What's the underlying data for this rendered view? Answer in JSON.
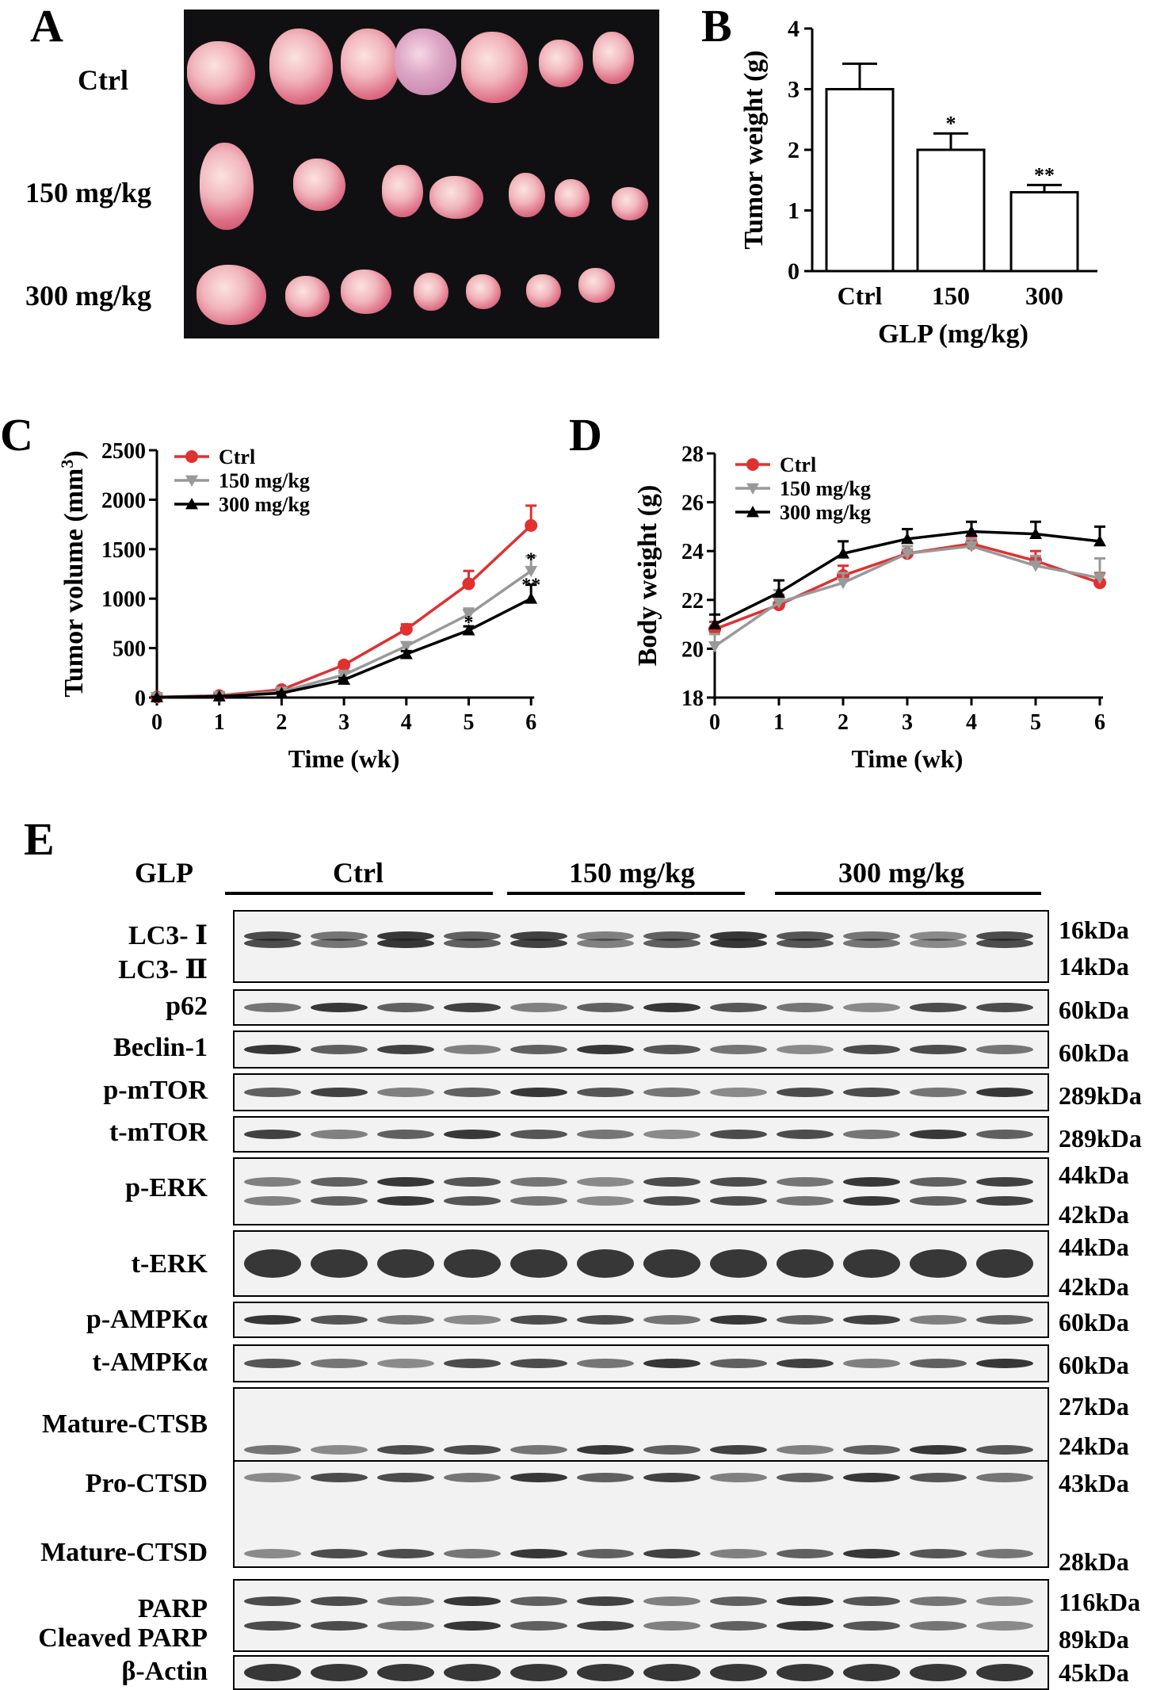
{
  "panels": {
    "a": "A",
    "b": "B",
    "c": "C",
    "d": "D",
    "e": "E"
  },
  "panel_a": {
    "row_labels": [
      "Ctrl",
      "150 mg/kg",
      "300 mg/kg"
    ]
  },
  "chart_data": [
    {
      "type": "bar",
      "panel": "B",
      "categories": [
        "Ctrl",
        "150",
        "300"
      ],
      "values": [
        3.0,
        2.0,
        1.3
      ],
      "errors": [
        0.42,
        0.27,
        0.12
      ],
      "significance": [
        "",
        "*",
        "**"
      ],
      "ylabel": "Tumor weight (g)",
      "xlabel": "GLP (mg/kg)",
      "ylim": [
        0,
        4
      ],
      "yticks": [
        "0",
        "1",
        "2",
        "3",
        "4"
      ]
    },
    {
      "type": "line",
      "panel": "C",
      "x": [
        0,
        1,
        2,
        3,
        4,
        5,
        6
      ],
      "series": [
        {
          "name": "Ctrl",
          "color": "#e03030",
          "marker": "circle",
          "values": [
            5,
            20,
            80,
            330,
            690,
            1150,
            1740
          ],
          "errors": [
            5,
            8,
            15,
            25,
            50,
            130,
            200
          ]
        },
        {
          "name": "150 mg/kg",
          "color": "#999999",
          "marker": "triangle-down",
          "values": [
            5,
            15,
            60,
            230,
            520,
            840,
            1280
          ],
          "errors": [
            5,
            6,
            12,
            20,
            40,
            60,
            150
          ]
        },
        {
          "name": "300 mg/kg",
          "color": "#000000",
          "marker": "triangle-up",
          "values": [
            3,
            12,
            45,
            180,
            440,
            680,
            1000
          ],
          "errors": [
            3,
            5,
            10,
            18,
            30,
            40,
            140
          ]
        }
      ],
      "annotations": [
        "*",
        "*",
        "**"
      ],
      "xlabel": "Time (wk)",
      "ylabel": "Tumor volume (mm",
      "ylabel_sup": "3",
      "ylabel_close": ")",
      "ylim": [
        0,
        2500
      ],
      "yticks": [
        "0",
        "500",
        "1000",
        "1500",
        "2000",
        "2500"
      ],
      "xticks": [
        "0",
        "1",
        "2",
        "3",
        "4",
        "5",
        "6"
      ]
    },
    {
      "type": "line",
      "panel": "D",
      "x": [
        0,
        1,
        2,
        3,
        4,
        5,
        6
      ],
      "series": [
        {
          "name": "Ctrl",
          "color": "#e03030",
          "marker": "circle",
          "values": [
            20.8,
            21.8,
            23.0,
            23.9,
            24.3,
            23.6,
            22.7
          ],
          "errors": [
            0.3,
            0.4,
            0.4,
            0.3,
            0.3,
            0.4,
            0.4
          ]
        },
        {
          "name": "150 mg/kg",
          "color": "#999999",
          "marker": "triangle-down",
          "values": [
            20.1,
            21.9,
            22.7,
            23.9,
            24.2,
            23.4,
            22.9
          ],
          "errors": [
            0.5,
            0.5,
            0.4,
            0.3,
            0.3,
            0.4,
            0.8
          ]
        },
        {
          "name": "300 mg/kg",
          "color": "#000000",
          "marker": "triangle-up",
          "values": [
            21.0,
            22.3,
            23.9,
            24.5,
            24.8,
            24.7,
            24.4
          ],
          "errors": [
            0.4,
            0.5,
            0.5,
            0.4,
            0.4,
            0.5,
            0.6
          ]
        }
      ],
      "xlabel": "Time (wk)",
      "ylabel": "Body weight (g)",
      "ylim": [
        18,
        28
      ],
      "yticks": [
        "18",
        "20",
        "22",
        "24",
        "26",
        "28"
      ],
      "xticks": [
        "0",
        "1",
        "2",
        "3",
        "4",
        "5",
        "6"
      ]
    }
  ],
  "panel_e": {
    "glp_label": "GLP",
    "groups": [
      "Ctrl",
      "150 mg/kg",
      "300 mg/kg"
    ],
    "blots": [
      {
        "labels": [
          "LC3- Ⅰ",
          "LC3- Ⅱ"
        ],
        "kda": [
          "16kDa",
          "14kDa"
        ]
      },
      {
        "labels": [
          "p62"
        ],
        "kda": [
          "60kDa"
        ]
      },
      {
        "labels": [
          "Beclin-1"
        ],
        "kda": [
          "60kDa"
        ]
      },
      {
        "labels": [
          "p-mTOR"
        ],
        "kda": [
          "289kDa"
        ]
      },
      {
        "labels": [
          "t-mTOR"
        ],
        "kda": [
          "289kDa"
        ]
      },
      {
        "labels": [
          "p-ERK"
        ],
        "kda": [
          "44kDa",
          "42kDa"
        ]
      },
      {
        "labels": [
          "t-ERK"
        ],
        "kda": [
          "44kDa",
          "42kDa"
        ]
      },
      {
        "labels": [
          "p-AMPKα"
        ],
        "kda": [
          "60kDa"
        ]
      },
      {
        "labels": [
          "t-AMPKα"
        ],
        "kda": [
          "60kDa"
        ]
      },
      {
        "labels": [
          "Mature-CTSB"
        ],
        "kda": [
          "27kDa",
          "24kDa"
        ]
      },
      {
        "labels": [
          "Pro-CTSD",
          "Mature-CTSD"
        ],
        "kda": [
          "43kDa",
          "28kDa"
        ]
      },
      {
        "labels": [
          "PARP",
          "Cleaved PARP"
        ],
        "kda": [
          "116kDa",
          "89kDa"
        ]
      },
      {
        "labels": [
          "β-Actin"
        ],
        "kda": [
          "45kDa"
        ]
      }
    ]
  }
}
